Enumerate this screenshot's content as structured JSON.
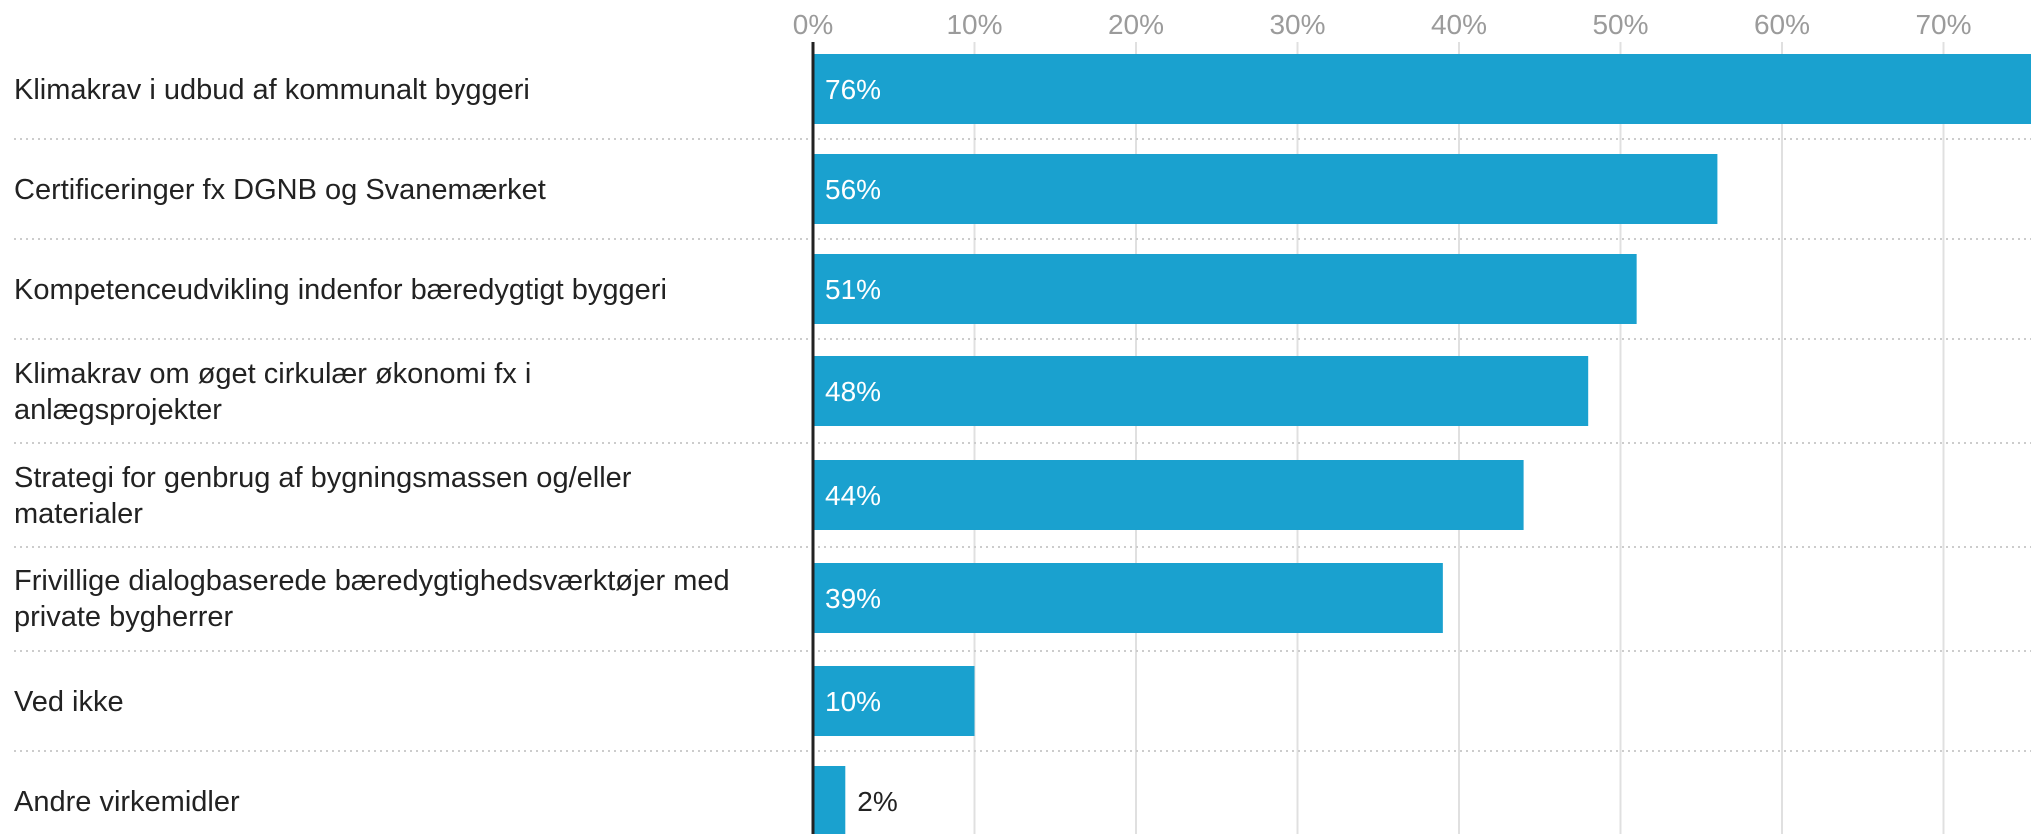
{
  "chart_data": {
    "type": "bar",
    "orientation": "horizontal",
    "categories": [
      [
        "Klimakrav i udbud af kommunalt byggeri"
      ],
      [
        "Certificeringer fx DGNB og Svanemærket"
      ],
      [
        "Kompetenceudvikling indenfor bæredygtigt byggeri"
      ],
      [
        "Klimakrav om øget cirkulær økonomi fx i",
        "anlægsprojekter"
      ],
      [
        "Strategi for genbrug af bygningsmassen og/eller",
        "materialer"
      ],
      [
        "Frivillige dialogbaserede bæredygtighedsværktøjer med",
        "private bygherrer"
      ],
      [
        "Ved ikke"
      ],
      [
        "Andre virkemidler"
      ]
    ],
    "values": [
      76,
      56,
      51,
      48,
      44,
      39,
      10,
      2
    ],
    "value_labels": [
      "76%",
      "56%",
      "51%",
      "48%",
      "44%",
      "39%",
      "10%",
      "2%"
    ],
    "xlim": [
      0,
      74
    ],
    "xticks": [
      0,
      10,
      20,
      30,
      40,
      50,
      60,
      70
    ],
    "xtick_labels": [
      "0%",
      "10%",
      "20%",
      "30%",
      "40%",
      "50%",
      "60%",
      "70%"
    ],
    "title": "",
    "xlabel": "",
    "ylabel": "",
    "grid": true,
    "colors": {
      "bar": "#1aa1cf",
      "grid": "#e0e0e0",
      "separator": "#cccccc",
      "axis": "#222222",
      "label_inside": "#ffffff",
      "label_outside": "#222222"
    }
  }
}
